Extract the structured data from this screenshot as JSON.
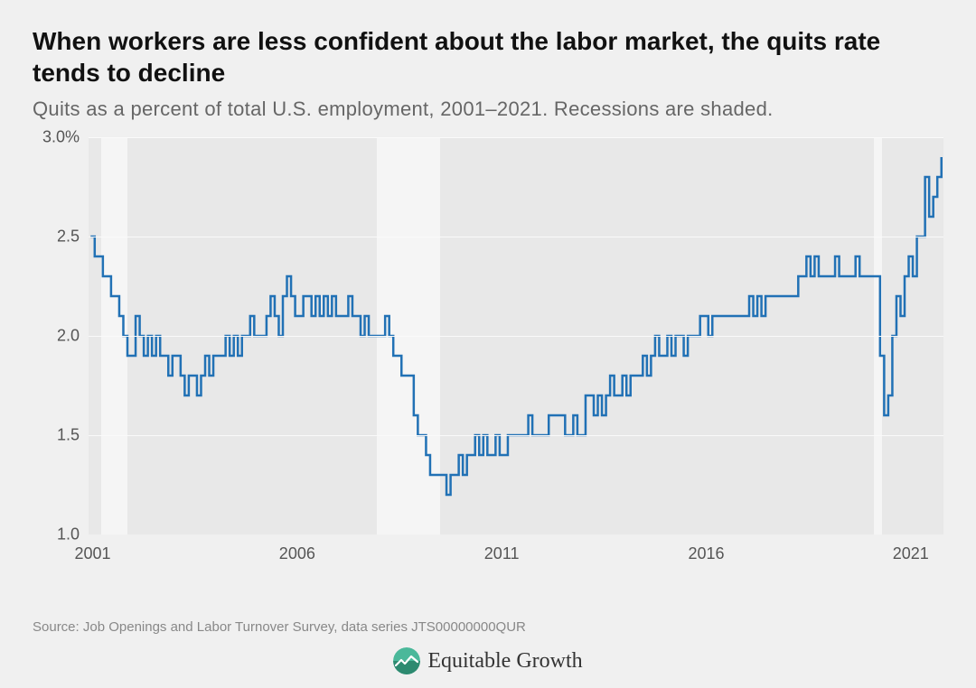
{
  "title": "When workers are less confident about the labor market, the quits rate tends to decline",
  "subtitle": "Quits as a percent of total U.S. employment, 2001–2021. Recessions are shaded.",
  "source": "Source: Job Openings and Labor Turnover Survey, data series JTS00000000QUR",
  "logo_text": "Equitable Growth",
  "chart": {
    "type": "line-step",
    "x_domain": [
      2000.9,
      2021.8
    ],
    "y_domain": [
      1.0,
      3.0
    ],
    "y_ticks": [
      1.0,
      1.5,
      2.0,
      2.5,
      3.0
    ],
    "y_tick_labels": [
      "1.0",
      "1.5",
      "2.0",
      "2.5",
      "3.0%"
    ],
    "x_ticks": [
      2001,
      2006,
      2011,
      2016,
      2021
    ],
    "x_tick_labels": [
      "2001",
      "2006",
      "2011",
      "2016",
      "2021"
    ],
    "line_color": "#2171b5",
    "line_width": 2.5,
    "background_color": "#e8e8e8",
    "grid_color": "#fafafa",
    "recession_color": "#f5f5f5",
    "recessions": [
      {
        "start": 2001.2,
        "end": 2001.85
      },
      {
        "start": 2007.95,
        "end": 2009.5
      },
      {
        "start": 2020.1,
        "end": 2020.3
      }
    ],
    "series": [
      {
        "x": 2000.95,
        "y": 2.5
      },
      {
        "x": 2001.05,
        "y": 2.4
      },
      {
        "x": 2001.15,
        "y": 2.4
      },
      {
        "x": 2001.25,
        "y": 2.3
      },
      {
        "x": 2001.35,
        "y": 2.3
      },
      {
        "x": 2001.45,
        "y": 2.2
      },
      {
        "x": 2001.55,
        "y": 2.2
      },
      {
        "x": 2001.65,
        "y": 2.1
      },
      {
        "x": 2001.75,
        "y": 2.0
      },
      {
        "x": 2001.85,
        "y": 1.9
      },
      {
        "x": 2001.95,
        "y": 1.9
      },
      {
        "x": 2002.05,
        "y": 2.1
      },
      {
        "x": 2002.15,
        "y": 2.0
      },
      {
        "x": 2002.25,
        "y": 1.9
      },
      {
        "x": 2002.35,
        "y": 2.0
      },
      {
        "x": 2002.45,
        "y": 1.9
      },
      {
        "x": 2002.55,
        "y": 2.0
      },
      {
        "x": 2002.65,
        "y": 1.9
      },
      {
        "x": 2002.75,
        "y": 1.9
      },
      {
        "x": 2002.85,
        "y": 1.8
      },
      {
        "x": 2002.95,
        "y": 1.9
      },
      {
        "x": 2003.05,
        "y": 1.9
      },
      {
        "x": 2003.15,
        "y": 1.8
      },
      {
        "x": 2003.25,
        "y": 1.7
      },
      {
        "x": 2003.35,
        "y": 1.8
      },
      {
        "x": 2003.45,
        "y": 1.8
      },
      {
        "x": 2003.55,
        "y": 1.7
      },
      {
        "x": 2003.65,
        "y": 1.8
      },
      {
        "x": 2003.75,
        "y": 1.9
      },
      {
        "x": 2003.85,
        "y": 1.8
      },
      {
        "x": 2003.95,
        "y": 1.9
      },
      {
        "x": 2004.05,
        "y": 1.9
      },
      {
        "x": 2004.15,
        "y": 1.9
      },
      {
        "x": 2004.25,
        "y": 2.0
      },
      {
        "x": 2004.35,
        "y": 1.9
      },
      {
        "x": 2004.45,
        "y": 2.0
      },
      {
        "x": 2004.55,
        "y": 1.9
      },
      {
        "x": 2004.65,
        "y": 2.0
      },
      {
        "x": 2004.75,
        "y": 2.0
      },
      {
        "x": 2004.85,
        "y": 2.1
      },
      {
        "x": 2004.95,
        "y": 2.0
      },
      {
        "x": 2005.05,
        "y": 2.0
      },
      {
        "x": 2005.15,
        "y": 2.0
      },
      {
        "x": 2005.25,
        "y": 2.1
      },
      {
        "x": 2005.35,
        "y": 2.2
      },
      {
        "x": 2005.45,
        "y": 2.1
      },
      {
        "x": 2005.55,
        "y": 2.0
      },
      {
        "x": 2005.65,
        "y": 2.2
      },
      {
        "x": 2005.75,
        "y": 2.3
      },
      {
        "x": 2005.85,
        "y": 2.2
      },
      {
        "x": 2005.95,
        "y": 2.1
      },
      {
        "x": 2006.05,
        "y": 2.1
      },
      {
        "x": 2006.15,
        "y": 2.2
      },
      {
        "x": 2006.25,
        "y": 2.2
      },
      {
        "x": 2006.35,
        "y": 2.1
      },
      {
        "x": 2006.45,
        "y": 2.2
      },
      {
        "x": 2006.55,
        "y": 2.1
      },
      {
        "x": 2006.65,
        "y": 2.2
      },
      {
        "x": 2006.75,
        "y": 2.1
      },
      {
        "x": 2006.85,
        "y": 2.2
      },
      {
        "x": 2006.95,
        "y": 2.1
      },
      {
        "x": 2007.05,
        "y": 2.1
      },
      {
        "x": 2007.15,
        "y": 2.1
      },
      {
        "x": 2007.25,
        "y": 2.2
      },
      {
        "x": 2007.35,
        "y": 2.1
      },
      {
        "x": 2007.45,
        "y": 2.1
      },
      {
        "x": 2007.55,
        "y": 2.0
      },
      {
        "x": 2007.65,
        "y": 2.1
      },
      {
        "x": 2007.75,
        "y": 2.0
      },
      {
        "x": 2007.85,
        "y": 2.0
      },
      {
        "x": 2007.95,
        "y": 2.0
      },
      {
        "x": 2008.05,
        "y": 2.0
      },
      {
        "x": 2008.15,
        "y": 2.1
      },
      {
        "x": 2008.25,
        "y": 2.0
      },
      {
        "x": 2008.35,
        "y": 1.9
      },
      {
        "x": 2008.45,
        "y": 1.9
      },
      {
        "x": 2008.55,
        "y": 1.8
      },
      {
        "x": 2008.65,
        "y": 1.8
      },
      {
        "x": 2008.75,
        "y": 1.8
      },
      {
        "x": 2008.85,
        "y": 1.6
      },
      {
        "x": 2008.95,
        "y": 1.5
      },
      {
        "x": 2009.05,
        "y": 1.5
      },
      {
        "x": 2009.15,
        "y": 1.4
      },
      {
        "x": 2009.25,
        "y": 1.3
      },
      {
        "x": 2009.35,
        "y": 1.3
      },
      {
        "x": 2009.45,
        "y": 1.3
      },
      {
        "x": 2009.55,
        "y": 1.3
      },
      {
        "x": 2009.65,
        "y": 1.2
      },
      {
        "x": 2009.75,
        "y": 1.3
      },
      {
        "x": 2009.85,
        "y": 1.3
      },
      {
        "x": 2009.95,
        "y": 1.4
      },
      {
        "x": 2010.05,
        "y": 1.3
      },
      {
        "x": 2010.15,
        "y": 1.4
      },
      {
        "x": 2010.25,
        "y": 1.4
      },
      {
        "x": 2010.35,
        "y": 1.5
      },
      {
        "x": 2010.45,
        "y": 1.4
      },
      {
        "x": 2010.55,
        "y": 1.5
      },
      {
        "x": 2010.65,
        "y": 1.4
      },
      {
        "x": 2010.75,
        "y": 1.4
      },
      {
        "x": 2010.85,
        "y": 1.5
      },
      {
        "x": 2010.95,
        "y": 1.4
      },
      {
        "x": 2011.05,
        "y": 1.4
      },
      {
        "x": 2011.15,
        "y": 1.5
      },
      {
        "x": 2011.25,
        "y": 1.5
      },
      {
        "x": 2011.35,
        "y": 1.5
      },
      {
        "x": 2011.45,
        "y": 1.5
      },
      {
        "x": 2011.55,
        "y": 1.5
      },
      {
        "x": 2011.65,
        "y": 1.6
      },
      {
        "x": 2011.75,
        "y": 1.5
      },
      {
        "x": 2011.85,
        "y": 1.5
      },
      {
        "x": 2011.95,
        "y": 1.5
      },
      {
        "x": 2012.05,
        "y": 1.5
      },
      {
        "x": 2012.15,
        "y": 1.6
      },
      {
        "x": 2012.25,
        "y": 1.6
      },
      {
        "x": 2012.35,
        "y": 1.6
      },
      {
        "x": 2012.45,
        "y": 1.6
      },
      {
        "x": 2012.55,
        "y": 1.5
      },
      {
        "x": 2012.65,
        "y": 1.5
      },
      {
        "x": 2012.75,
        "y": 1.6
      },
      {
        "x": 2012.85,
        "y": 1.5
      },
      {
        "x": 2012.95,
        "y": 1.5
      },
      {
        "x": 2013.05,
        "y": 1.7
      },
      {
        "x": 2013.15,
        "y": 1.7
      },
      {
        "x": 2013.25,
        "y": 1.6
      },
      {
        "x": 2013.35,
        "y": 1.7
      },
      {
        "x": 2013.45,
        "y": 1.6
      },
      {
        "x": 2013.55,
        "y": 1.7
      },
      {
        "x": 2013.65,
        "y": 1.8
      },
      {
        "x": 2013.75,
        "y": 1.7
      },
      {
        "x": 2013.85,
        "y": 1.7
      },
      {
        "x": 2013.95,
        "y": 1.8
      },
      {
        "x": 2014.05,
        "y": 1.7
      },
      {
        "x": 2014.15,
        "y": 1.8
      },
      {
        "x": 2014.25,
        "y": 1.8
      },
      {
        "x": 2014.35,
        "y": 1.8
      },
      {
        "x": 2014.45,
        "y": 1.9
      },
      {
        "x": 2014.55,
        "y": 1.8
      },
      {
        "x": 2014.65,
        "y": 1.9
      },
      {
        "x": 2014.75,
        "y": 2.0
      },
      {
        "x": 2014.85,
        "y": 1.9
      },
      {
        "x": 2014.95,
        "y": 1.9
      },
      {
        "x": 2015.05,
        "y": 2.0
      },
      {
        "x": 2015.15,
        "y": 1.9
      },
      {
        "x": 2015.25,
        "y": 2.0
      },
      {
        "x": 2015.35,
        "y": 2.0
      },
      {
        "x": 2015.45,
        "y": 1.9
      },
      {
        "x": 2015.55,
        "y": 2.0
      },
      {
        "x": 2015.65,
        "y": 2.0
      },
      {
        "x": 2015.75,
        "y": 2.0
      },
      {
        "x": 2015.85,
        "y": 2.1
      },
      {
        "x": 2015.95,
        "y": 2.1
      },
      {
        "x": 2016.05,
        "y": 2.0
      },
      {
        "x": 2016.15,
        "y": 2.1
      },
      {
        "x": 2016.25,
        "y": 2.1
      },
      {
        "x": 2016.35,
        "y": 2.1
      },
      {
        "x": 2016.45,
        "y": 2.1
      },
      {
        "x": 2016.55,
        "y": 2.1
      },
      {
        "x": 2016.65,
        "y": 2.1
      },
      {
        "x": 2016.75,
        "y": 2.1
      },
      {
        "x": 2016.85,
        "y": 2.1
      },
      {
        "x": 2016.95,
        "y": 2.1
      },
      {
        "x": 2017.05,
        "y": 2.2
      },
      {
        "x": 2017.15,
        "y": 2.1
      },
      {
        "x": 2017.25,
        "y": 2.2
      },
      {
        "x": 2017.35,
        "y": 2.1
      },
      {
        "x": 2017.45,
        "y": 2.2
      },
      {
        "x": 2017.55,
        "y": 2.2
      },
      {
        "x": 2017.65,
        "y": 2.2
      },
      {
        "x": 2017.75,
        "y": 2.2
      },
      {
        "x": 2017.85,
        "y": 2.2
      },
      {
        "x": 2017.95,
        "y": 2.2
      },
      {
        "x": 2018.05,
        "y": 2.2
      },
      {
        "x": 2018.15,
        "y": 2.2
      },
      {
        "x": 2018.25,
        "y": 2.3
      },
      {
        "x": 2018.35,
        "y": 2.3
      },
      {
        "x": 2018.45,
        "y": 2.4
      },
      {
        "x": 2018.55,
        "y": 2.3
      },
      {
        "x": 2018.65,
        "y": 2.4
      },
      {
        "x": 2018.75,
        "y": 2.3
      },
      {
        "x": 2018.85,
        "y": 2.3
      },
      {
        "x": 2018.95,
        "y": 2.3
      },
      {
        "x": 2019.05,
        "y": 2.3
      },
      {
        "x": 2019.15,
        "y": 2.4
      },
      {
        "x": 2019.25,
        "y": 2.3
      },
      {
        "x": 2019.35,
        "y": 2.3
      },
      {
        "x": 2019.45,
        "y": 2.3
      },
      {
        "x": 2019.55,
        "y": 2.3
      },
      {
        "x": 2019.65,
        "y": 2.4
      },
      {
        "x": 2019.75,
        "y": 2.3
      },
      {
        "x": 2019.85,
        "y": 2.3
      },
      {
        "x": 2019.95,
        "y": 2.3
      },
      {
        "x": 2020.05,
        "y": 2.3
      },
      {
        "x": 2020.15,
        "y": 2.3
      },
      {
        "x": 2020.25,
        "y": 1.9
      },
      {
        "x": 2020.35,
        "y": 1.6
      },
      {
        "x": 2020.45,
        "y": 1.7
      },
      {
        "x": 2020.55,
        "y": 2.0
      },
      {
        "x": 2020.65,
        "y": 2.2
      },
      {
        "x": 2020.75,
        "y": 2.1
      },
      {
        "x": 2020.85,
        "y": 2.3
      },
      {
        "x": 2020.95,
        "y": 2.4
      },
      {
        "x": 2021.05,
        "y": 2.3
      },
      {
        "x": 2021.15,
        "y": 2.5
      },
      {
        "x": 2021.25,
        "y": 2.5
      },
      {
        "x": 2021.35,
        "y": 2.8
      },
      {
        "x": 2021.45,
        "y": 2.6
      },
      {
        "x": 2021.55,
        "y": 2.7
      },
      {
        "x": 2021.65,
        "y": 2.8
      },
      {
        "x": 2021.75,
        "y": 2.9
      }
    ]
  },
  "logo": {
    "color_top": "#4ab89a",
    "color_bottom": "#2d8a70"
  }
}
